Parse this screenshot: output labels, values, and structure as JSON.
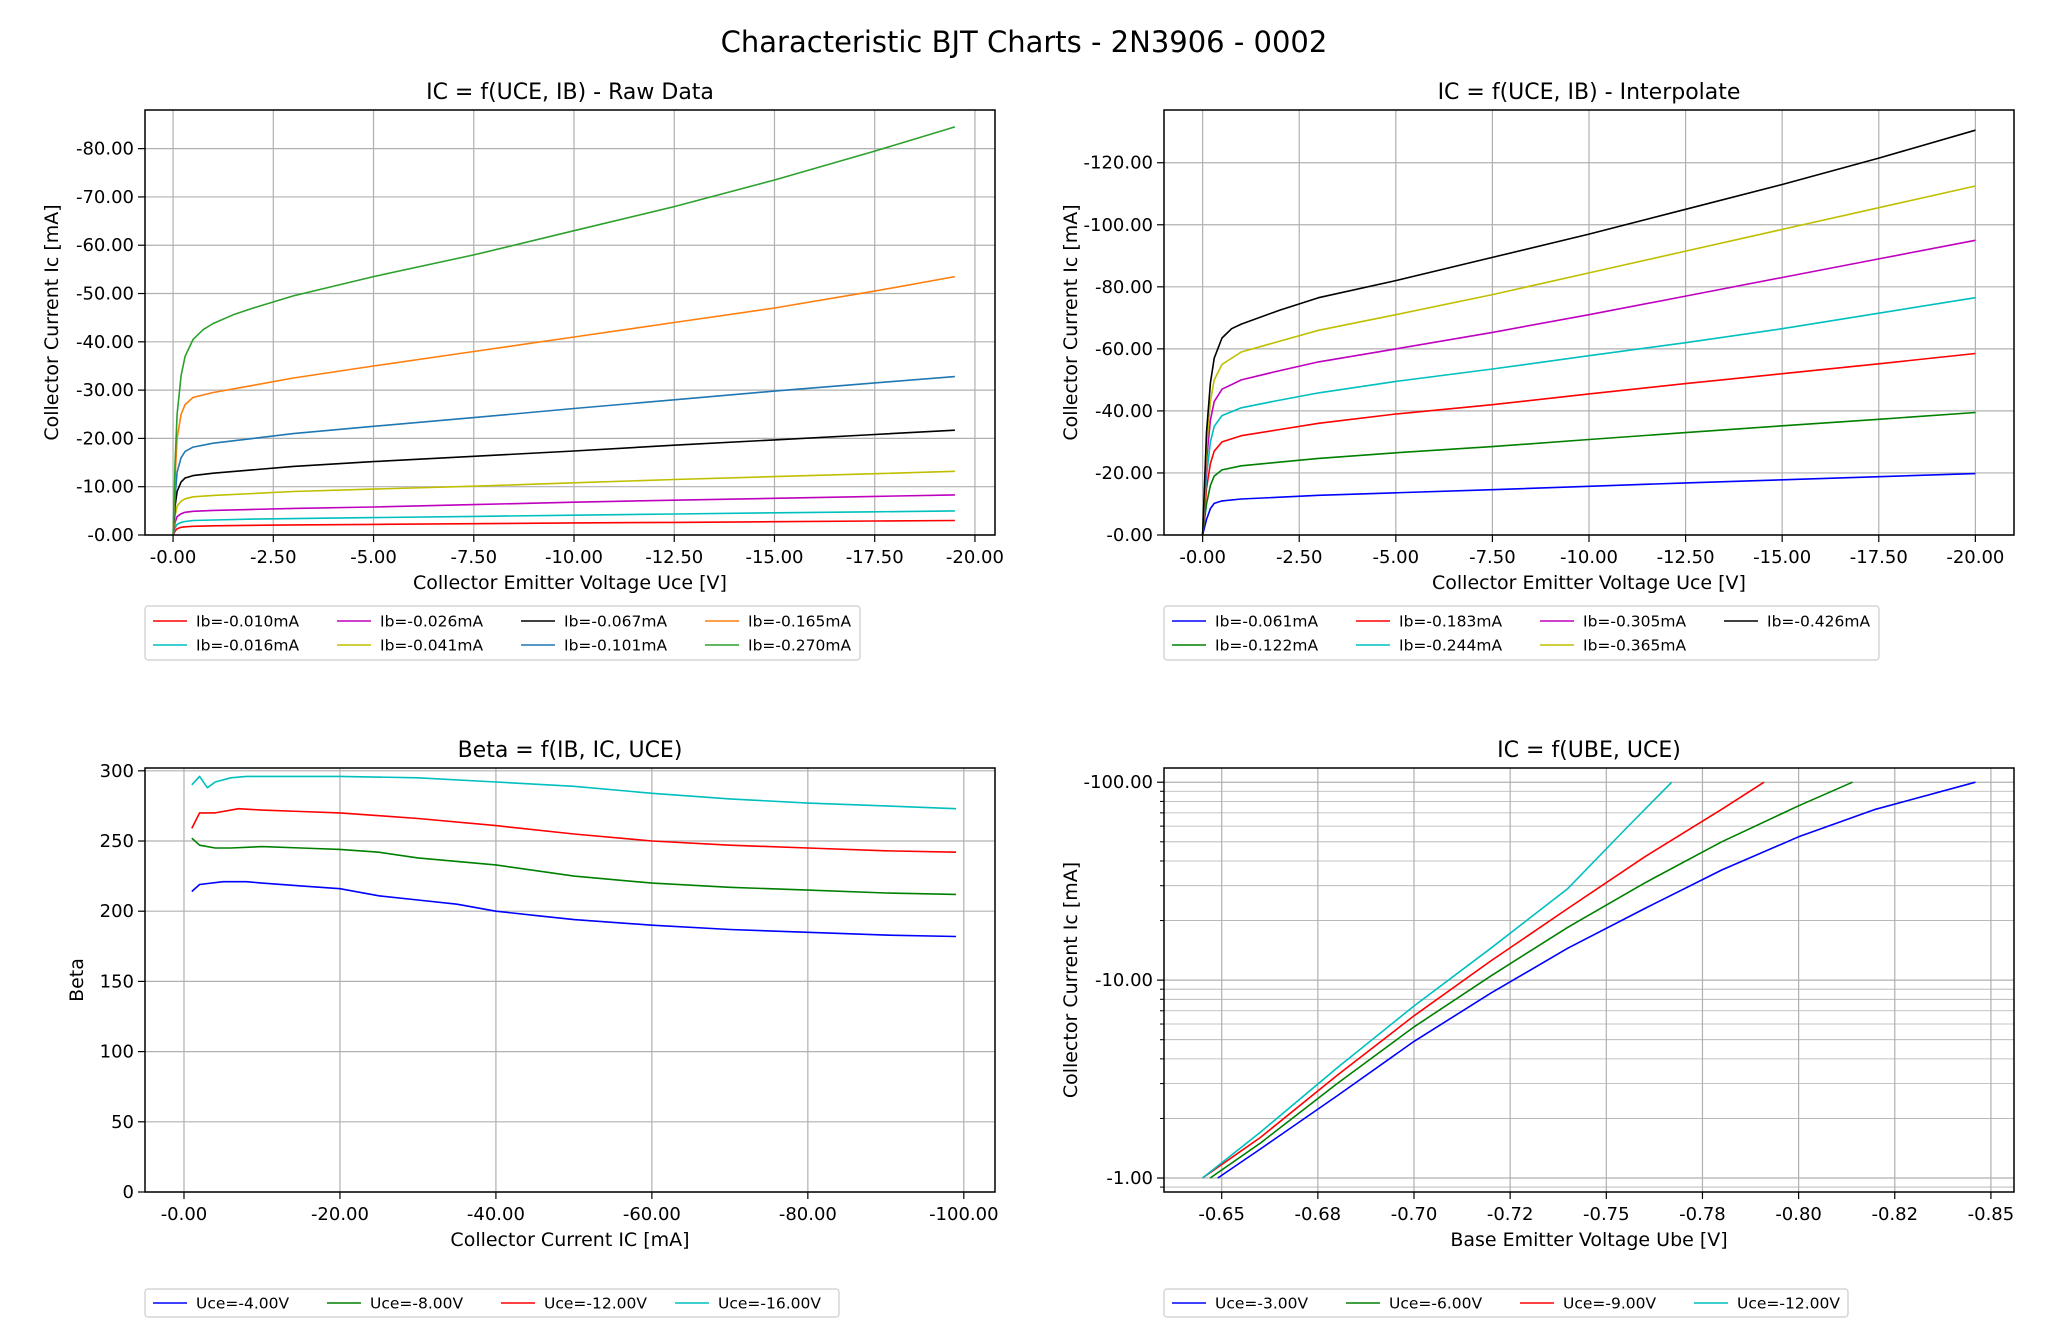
{
  "figure": {
    "title": "Characteristic BJT Charts - 2N3906 - 0002"
  },
  "chart_data": [
    {
      "id": "raw",
      "type": "line",
      "title": "IC = f(UCE, IB) - Raw Data",
      "xlabel": "Collector Emitter Voltage Uce [V]",
      "ylabel": "Collector Current Ic [mA]",
      "xlim": [
        0.7,
        -20.5
      ],
      "ylim": [
        0,
        -88
      ],
      "xscale": "linear",
      "yscale": "linear",
      "xticks": [
        0,
        -2.5,
        -5,
        -7.5,
        -10,
        -12.5,
        -15,
        -17.5,
        -20
      ],
      "xtick_labels": [
        "-0.00",
        "-2.50",
        "-5.00",
        "-7.50",
        "-10.00",
        "-12.50",
        "-15.00",
        "-17.50",
        "-20.00"
      ],
      "yticks": [
        0,
        -10,
        -20,
        -30,
        -40,
        -50,
        -60,
        -70,
        -80
      ],
      "ytick_labels": [
        "-0.00",
        "-10.00",
        "-20.00",
        "-30.00",
        "-40.00",
        "-50.00",
        "-60.00",
        "-70.00",
        "-80.00"
      ],
      "grid": true,
      "legend_placement": "below",
      "legend_columns": 4,
      "series": [
        {
          "name": "Ib=-0.010mA",
          "color": "#ff0000",
          "x": [
            0,
            -0.05,
            -0.1,
            -0.2,
            -0.3,
            -0.5,
            -1,
            -2,
            -3,
            -5,
            -7.5,
            -10,
            -12.5,
            -15,
            -17.5,
            -19.5
          ],
          "y": [
            0,
            -0.8,
            -1.3,
            -1.6,
            -1.7,
            -1.8,
            -1.9,
            -2.0,
            -2.1,
            -2.2,
            -2.35,
            -2.5,
            -2.6,
            -2.75,
            -2.9,
            -3.0
          ]
        },
        {
          "name": "Ib=-0.016mA",
          "color": "#00bfbf",
          "x": [
            0,
            -0.05,
            -0.1,
            -0.2,
            -0.3,
            -0.5,
            -1,
            -2,
            -3,
            -5,
            -7.5,
            -10,
            -12.5,
            -15,
            -17.5,
            -19.5
          ],
          "y": [
            0,
            -1.5,
            -2.2,
            -2.6,
            -2.8,
            -3.0,
            -3.1,
            -3.3,
            -3.4,
            -3.6,
            -3.85,
            -4.1,
            -4.35,
            -4.6,
            -4.8,
            -5.0
          ]
        },
        {
          "name": "Ib=-0.026mA",
          "color": "#bf00bf",
          "x": [
            0,
            -0.05,
            -0.1,
            -0.2,
            -0.3,
            -0.5,
            -1,
            -2,
            -3,
            -5,
            -7.5,
            -10,
            -12.5,
            -15,
            -17.5,
            -19.5
          ],
          "y": [
            0,
            -2.6,
            -3.8,
            -4.4,
            -4.7,
            -4.9,
            -5.1,
            -5.3,
            -5.5,
            -5.8,
            -6.3,
            -6.8,
            -7.2,
            -7.6,
            -8.0,
            -8.3
          ]
        },
        {
          "name": "Ib=-0.041mA",
          "color": "#bfbf00",
          "x": [
            0,
            -0.05,
            -0.1,
            -0.2,
            -0.3,
            -0.5,
            -1,
            -2,
            -3,
            -5,
            -7.5,
            -10,
            -12.5,
            -15,
            -17.5,
            -19.5
          ],
          "y": [
            0,
            -4,
            -6,
            -7,
            -7.5,
            -7.9,
            -8.2,
            -8.6,
            -9.0,
            -9.5,
            -10.1,
            -10.8,
            -11.5,
            -12.1,
            -12.7,
            -13.2
          ]
        },
        {
          "name": "Ib=-0.067mA",
          "color": "#000000",
          "x": [
            0,
            -0.05,
            -0.1,
            -0.2,
            -0.3,
            -0.5,
            -1,
            -2,
            -3,
            -5,
            -7.5,
            -10,
            -12.5,
            -15,
            -17.5,
            -19.5
          ],
          "y": [
            0,
            -6,
            -9,
            -11,
            -11.8,
            -12.3,
            -12.8,
            -13.5,
            -14.2,
            -15.2,
            -16.3,
            -17.4,
            -18.6,
            -19.7,
            -20.8,
            -21.7
          ]
        },
        {
          "name": "Ib=-0.101mA",
          "color": "#1f77b4",
          "x": [
            0,
            -0.05,
            -0.1,
            -0.2,
            -0.3,
            -0.5,
            -1,
            -2,
            -3,
            -5,
            -7.5,
            -10,
            -12.5,
            -15,
            -17.5,
            -19.5
          ],
          "y": [
            0,
            -8,
            -13,
            -16,
            -17.3,
            -18.2,
            -19.0,
            -20.0,
            -21.0,
            -22.5,
            -24.3,
            -26.2,
            -28.0,
            -29.8,
            -31.5,
            -32.8
          ]
        },
        {
          "name": "Ib=-0.165mA",
          "color": "#ff7f0e",
          "x": [
            0,
            -0.05,
            -0.1,
            -0.2,
            -0.3,
            -0.5,
            -1,
            -2,
            -3,
            -5,
            -7.5,
            -10,
            -12.5,
            -15,
            -17.5,
            -19.5
          ],
          "y": [
            0,
            -12,
            -20,
            -25,
            -27,
            -28.5,
            -29.5,
            -31,
            -32.5,
            -35,
            -38,
            -41,
            -44,
            -47,
            -50.5,
            -53.5
          ]
        },
        {
          "name": "Ib=-0.270mA",
          "color": "#2ca02c",
          "x": [
            0,
            -0.05,
            -0.1,
            -0.2,
            -0.3,
            -0.5,
            -0.75,
            -1,
            -1.5,
            -2,
            -3,
            -5,
            -7.5,
            -10,
            -12.5,
            -15,
            -17.5,
            -19.5
          ],
          "y": [
            0,
            -15,
            -25,
            -33,
            -37,
            -40.5,
            -42.5,
            -43.8,
            -45.6,
            -47,
            -49.5,
            -53.5,
            -58,
            -63,
            -68,
            -73.5,
            -79.5,
            -84.5
          ]
        }
      ]
    },
    {
      "id": "interp",
      "type": "line",
      "title": "IC = f(UCE, IB) - Interpolate",
      "xlabel": "Collector Emitter Voltage Uce [V]",
      "ylabel": "Collector Current Ic [mA]",
      "xlim": [
        1.0,
        -21.0
      ],
      "ylim": [
        0,
        -137
      ],
      "xscale": "linear",
      "yscale": "linear",
      "xticks": [
        0,
        -2.5,
        -5,
        -7.5,
        -10,
        -12.5,
        -15,
        -17.5,
        -20
      ],
      "xtick_labels": [
        "-0.00",
        "-2.50",
        "-5.00",
        "-7.50",
        "-10.00",
        "-12.50",
        "-15.00",
        "-17.50",
        "-20.00"
      ],
      "yticks": [
        0,
        -20,
        -40,
        -60,
        -80,
        -100,
        -120
      ],
      "ytick_labels": [
        "-0.00",
        "-20.00",
        "-40.00",
        "-60.00",
        "-80.00",
        "-100.00",
        "-120.00"
      ],
      "grid": true,
      "legend_placement": "below",
      "legend_columns": 4,
      "series": [
        {
          "name": "Ib=-0.061mA",
          "color": "#0000ff",
          "x": [
            0,
            -0.1,
            -0.2,
            -0.3,
            -0.5,
            -1,
            -2,
            -3,
            -5,
            -7.5,
            -10,
            -12.5,
            -15,
            -17.5,
            -20
          ],
          "y": [
            0,
            -5,
            -8.5,
            -10.2,
            -11,
            -11.6,
            -12.2,
            -12.8,
            -13.6,
            -14.6,
            -15.7,
            -16.8,
            -17.8,
            -18.8,
            -19.8
          ]
        },
        {
          "name": "Ib=-0.122mA",
          "color": "#008000",
          "x": [
            0,
            -0.1,
            -0.2,
            -0.3,
            -0.5,
            -1,
            -2,
            -3,
            -5,
            -7.5,
            -10,
            -12.5,
            -15,
            -17.5,
            -20
          ],
          "y": [
            0,
            -10,
            -16,
            -19,
            -21,
            -22.3,
            -23.5,
            -24.7,
            -26.5,
            -28.5,
            -30.8,
            -33,
            -35.2,
            -37.3,
            -39.5
          ]
        },
        {
          "name": "Ib=-0.183mA",
          "color": "#ff0000",
          "x": [
            0,
            -0.1,
            -0.2,
            -0.3,
            -0.5,
            -1,
            -2,
            -3,
            -5,
            -7.5,
            -10,
            -12.5,
            -15,
            -17.5,
            -20
          ],
          "y": [
            0,
            -15,
            -23,
            -27,
            -30,
            -32,
            -34,
            -36,
            -39,
            -42,
            -45.5,
            -48.8,
            -52,
            -55.2,
            -58.5
          ]
        },
        {
          "name": "Ib=-0.244mA",
          "color": "#00bfbf",
          "x": [
            0,
            -0.1,
            -0.2,
            -0.3,
            -0.5,
            -1,
            -2,
            -3,
            -5,
            -7.5,
            -10,
            -12.5,
            -15,
            -17.5,
            -20
          ],
          "y": [
            0,
            -19,
            -30,
            -35,
            -38.5,
            -41,
            -43.5,
            -45.8,
            -49.5,
            -53.5,
            -57.8,
            -62,
            -66.5,
            -71.5,
            -76.5
          ]
        },
        {
          "name": "Ib=-0.305mA",
          "color": "#bf00bf",
          "x": [
            0,
            -0.1,
            -0.2,
            -0.3,
            -0.5,
            -1,
            -2,
            -3,
            -5,
            -7.5,
            -10,
            -12.5,
            -15,
            -17.5,
            -20
          ],
          "y": [
            0,
            -24,
            -37,
            -43,
            -47,
            -50,
            -53,
            -55.8,
            -60,
            -65.3,
            -71,
            -77,
            -83,
            -89,
            -95
          ]
        },
        {
          "name": "Ib=-0.365mA",
          "color": "#bfbf00",
          "x": [
            0,
            -0.1,
            -0.2,
            -0.3,
            -0.5,
            -1,
            -2,
            -3,
            -5,
            -7.5,
            -10,
            -12.5,
            -15,
            -17.5,
            -20
          ],
          "y": [
            0,
            -28,
            -43,
            -50,
            -55,
            -59,
            -62.5,
            -66,
            -71,
            -77.5,
            -84.5,
            -91.5,
            -98.5,
            -105.5,
            -112.5
          ]
        },
        {
          "name": "Ib=-0.426mA",
          "color": "#000000",
          "x": [
            0,
            -0.1,
            -0.2,
            -0.3,
            -0.5,
            -0.75,
            -1,
            -2,
            -3,
            -5,
            -7.5,
            -10,
            -12.5,
            -15,
            -17.5,
            -20
          ],
          "y": [
            0,
            -33,
            -49,
            -57,
            -63.5,
            -66.5,
            -68,
            -72.5,
            -76.5,
            -82,
            -89.5,
            -97,
            -105,
            -113,
            -121.5,
            -130.5
          ]
        }
      ]
    },
    {
      "id": "beta",
      "type": "line",
      "title": "Beta = f(IB, IC, UCE)",
      "xlabel": "Collector Current IC [mA]",
      "ylabel": "Beta",
      "xlim": [
        5,
        -104
      ],
      "ylim": [
        0,
        302
      ],
      "xscale": "linear",
      "yscale": "linear",
      "xticks": [
        0,
        -20,
        -40,
        -60,
        -80,
        -100
      ],
      "xtick_labels": [
        "-0.00",
        "-20.00",
        "-40.00",
        "-60.00",
        "-80.00",
        "-100.00"
      ],
      "yticks": [
        0,
        50,
        100,
        150,
        200,
        250,
        300
      ],
      "ytick_labels": [
        "0",
        "50",
        "100",
        "150",
        "200",
        "250",
        "300"
      ],
      "grid": true,
      "legend_placement": "below",
      "legend_columns": 4,
      "series": [
        {
          "name": "Uce=-4.00V",
          "color": "#0000ff",
          "x": [
            -1,
            -2,
            -5,
            -8,
            -10,
            -15,
            -20,
            -25,
            -30,
            -35,
            -40,
            -45,
            -50,
            -60,
            -70,
            -80,
            -90,
            -99
          ],
          "y": [
            214,
            219,
            221,
            221,
            220,
            218,
            216,
            211,
            208,
            205,
            200,
            197,
            194,
            190,
            187,
            185,
            183,
            182
          ]
        },
        {
          "name": "Uce=-8.00V",
          "color": "#008000",
          "x": [
            -1,
            -2,
            -4,
            -6,
            -10,
            -15,
            -20,
            -25,
            -30,
            -40,
            -50,
            -60,
            -70,
            -80,
            -90,
            -99
          ],
          "y": [
            252,
            247,
            245,
            245,
            246,
            245,
            244,
            242,
            238,
            233,
            225,
            220,
            217,
            215,
            213,
            212
          ]
        },
        {
          "name": "Uce=-12.00V",
          "color": "#ff0000",
          "x": [
            -1,
            -2,
            -4,
            -7,
            -10,
            -15,
            -20,
            -25,
            -30,
            -40,
            -50,
            -60,
            -70,
            -80,
            -90,
            -99
          ],
          "y": [
            259,
            270,
            270,
            273,
            272,
            271,
            270,
            268,
            266,
            261,
            255,
            250,
            247,
            245,
            243,
            242
          ]
        },
        {
          "name": "Uce=-16.00V",
          "color": "#00bfbf",
          "x": [
            -1,
            -2,
            -3,
            -4,
            -6,
            -8,
            -10,
            -15,
            -20,
            -30,
            -40,
            -50,
            -60,
            -70,
            -80,
            -90,
            -99
          ],
          "y": [
            290,
            296,
            288,
            292,
            295,
            296,
            296,
            296,
            296,
            295,
            292,
            289,
            284,
            280,
            277,
            275,
            273
          ]
        }
      ]
    },
    {
      "id": "ube",
      "type": "line",
      "title": "IC = f(UBE, UCE)",
      "xlabel": "Base Emitter Voltage Ube [V]",
      "ylabel": "Collector Current Ic [mA]",
      "xlim": [
        -0.635,
        -0.856
      ],
      "ylim": [
        0.85,
        118
      ],
      "xscale": "linear",
      "yscale": "log",
      "xticks": [
        -0.65,
        -0.675,
        -0.7,
        -0.725,
        -0.75,
        -0.775,
        -0.8,
        -0.825,
        -0.85
      ],
      "xtick_labels": [
        "-0.65",
        "-0.68",
        "-0.70",
        "-0.72",
        "-0.75",
        "-0.78",
        "-0.80",
        "-0.82",
        "-0.85"
      ],
      "yticks": [
        1,
        10,
        100
      ],
      "ytick_labels": [
        "-1.00",
        "-10.00",
        "-100.00"
      ],
      "grid": true,
      "legend_placement": "below",
      "legend_columns": 4,
      "series": [
        {
          "name": "Uce=-3.00V",
          "color": "#0000ff",
          "x": [
            -0.649,
            -0.66,
            -0.68,
            -0.7,
            -0.72,
            -0.74,
            -0.76,
            -0.78,
            -0.8,
            -0.82,
            -0.846
          ],
          "y": [
            1.0,
            1.4,
            2.6,
            4.9,
            8.6,
            14.5,
            23,
            36,
            53,
            73,
            100
          ]
        },
        {
          "name": "Uce=-6.00V",
          "color": "#008000",
          "x": [
            -0.647,
            -0.66,
            -0.68,
            -0.7,
            -0.72,
            -0.74,
            -0.76,
            -0.78,
            -0.8,
            -0.814
          ],
          "y": [
            1.0,
            1.5,
            3.0,
            5.8,
            10.5,
            18.5,
            31,
            50,
            76,
            100
          ]
        },
        {
          "name": "Uce=-9.00V",
          "color": "#ff0000",
          "x": [
            -0.645,
            -0.66,
            -0.68,
            -0.7,
            -0.72,
            -0.74,
            -0.76,
            -0.78,
            -0.791
          ],
          "y": [
            1.0,
            1.6,
            3.3,
            6.6,
            12.5,
            23,
            42,
            73,
            100
          ]
        },
        {
          "name": "Uce=-12.00V",
          "color": "#00bfbf",
          "x": [
            -0.645,
            -0.66,
            -0.68,
            -0.7,
            -0.72,
            -0.74,
            -0.755,
            -0.767
          ],
          "y": [
            1.0,
            1.7,
            3.6,
            7.4,
            14.5,
            29,
            58,
            100
          ]
        }
      ]
    }
  ]
}
